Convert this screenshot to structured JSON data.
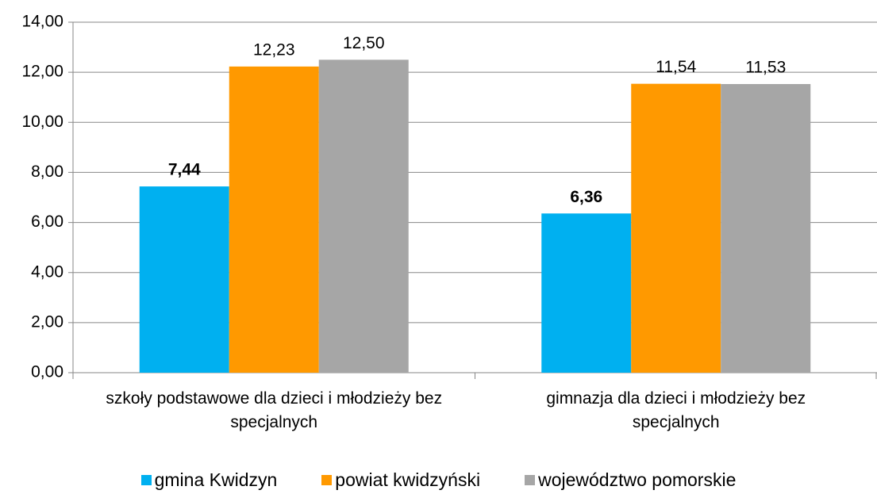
{
  "chart_data": {
    "type": "bar",
    "categories": [
      "szkoły podstawowe dla dzieci i młodzieży bez specjalnych",
      "gimnazja dla dzieci i młodzieży bez specjalnych"
    ],
    "series": [
      {
        "name": "gmina Kwidzyn",
        "color": "#00b0f0",
        "values": [
          7.44,
          6.36
        ],
        "value_labels": [
          "7,44",
          "6,36"
        ]
      },
      {
        "name": "powiat kwidzyński",
        "color": "#ff9900",
        "values": [
          12.23,
          11.54
        ],
        "value_labels": [
          "12,23",
          "11,54"
        ]
      },
      {
        "name": "województwo pomorskie",
        "color": "#a6a6a6",
        "values": [
          12.5,
          11.53
        ],
        "value_labels": [
          "12,50",
          "11,53"
        ]
      }
    ],
    "ylim": [
      0,
      14
    ],
    "yticks": [
      {
        "value": 0,
        "label": "0,00"
      },
      {
        "value": 2,
        "label": "2,00"
      },
      {
        "value": 4,
        "label": "4,00"
      },
      {
        "value": 6,
        "label": "6,00"
      },
      {
        "value": 8,
        "label": "8,00"
      },
      {
        "value": 10,
        "label": "10,00"
      },
      {
        "value": 12,
        "label": "12,00"
      },
      {
        "value": 14,
        "label": "14,00"
      }
    ],
    "grid": true,
    "legend": "bottom"
  }
}
